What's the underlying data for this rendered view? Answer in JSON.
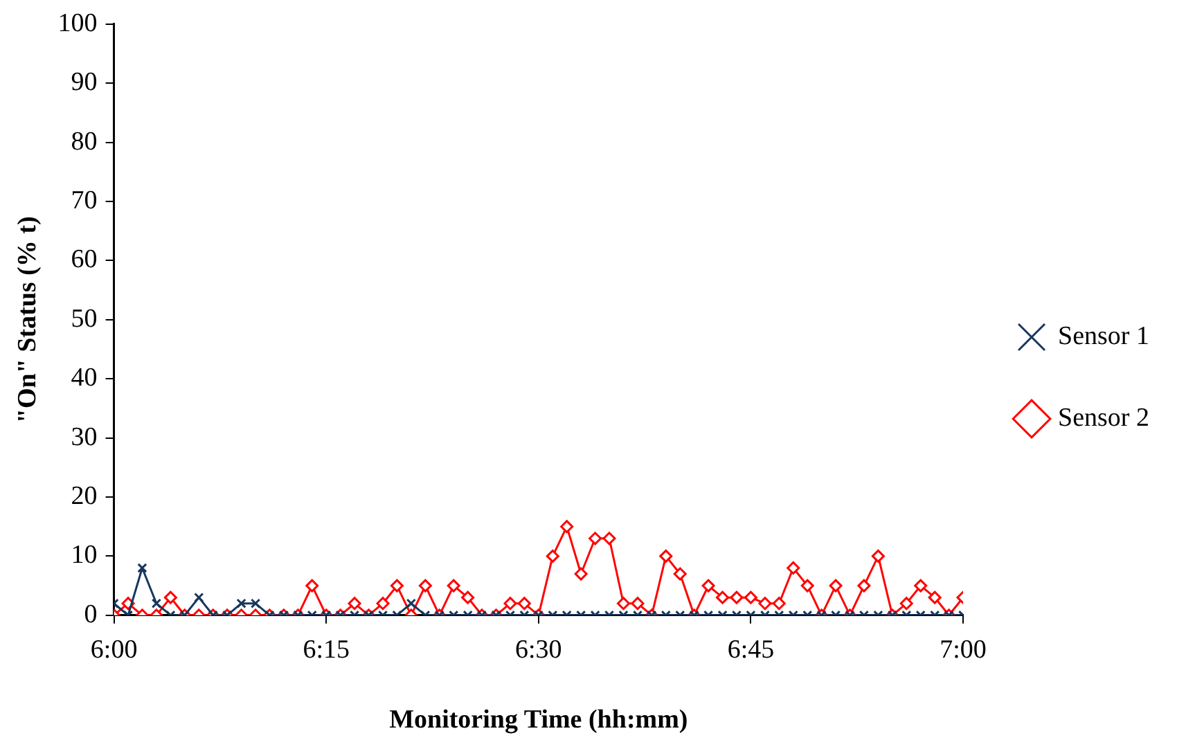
{
  "chart_data": {
    "type": "line",
    "xlabel": "Monitoring Time (hh:mm)",
    "ylabel": "\"On\" Status (% t)",
    "x": [
      6,
      6.0167,
      6.0333,
      6.05,
      6.0667,
      6.0833,
      6.1,
      6.1167,
      6.1333,
      6.15,
      6.1667,
      6.1833,
      6.2,
      6.2167,
      6.2333,
      6.25,
      6.2667,
      6.2833,
      6.3,
      6.3167,
      6.3333,
      6.35,
      6.3667,
      6.3833,
      6.4,
      6.4167,
      6.4333,
      6.45,
      6.4667,
      6.4833,
      6.5,
      6.5167,
      6.5333,
      6.55,
      6.5667,
      6.5833,
      6.6,
      6.6167,
      6.6333,
      6.65,
      6.6667,
      6.6833,
      6.7,
      6.7167,
      6.7333,
      6.75,
      6.7667,
      6.7833,
      6.8,
      6.8167,
      6.8333,
      6.85,
      6.8667,
      6.8833,
      6.9,
      6.9167,
      6.9333,
      6.95,
      6.9667,
      6.9833,
      7
    ],
    "xlim": [
      6,
      7
    ],
    "xticks": [
      {
        "value": 6,
        "label": "6:00"
      },
      {
        "value": 6.25,
        "label": "6:15"
      },
      {
        "value": 6.5,
        "label": "6:30"
      },
      {
        "value": 6.75,
        "label": "6:45"
      },
      {
        "value": 7,
        "label": "7:00"
      }
    ],
    "ylim": [
      0,
      100
    ],
    "yticks": [
      0,
      10,
      20,
      30,
      40,
      50,
      60,
      70,
      80,
      90,
      100
    ],
    "grid": false,
    "legend": "right",
    "line_style": "solid",
    "series": [
      {
        "name": "Sensor 1",
        "color": "#17375e",
        "marker": "cross",
        "values": [
          2,
          0,
          8,
          2,
          0,
          0,
          3,
          0,
          0,
          2,
          2,
          0,
          0,
          0,
          0,
          0,
          0,
          0,
          0,
          0,
          0,
          2,
          0,
          0,
          0,
          0,
          0,
          0,
          0,
          0,
          0,
          0,
          0,
          0,
          0,
          0,
          0,
          0,
          0,
          0,
          0,
          0,
          0,
          0,
          0,
          0,
          0,
          0,
          0,
          0,
          0,
          0,
          0,
          0,
          0,
          0,
          0,
          0,
          0,
          0,
          0
        ]
      },
      {
        "name": "Sensor 2",
        "color": "#ff0000",
        "marker": "diamond",
        "values": [
          0,
          2,
          0,
          0,
          3,
          0,
          0,
          0,
          0,
          0,
          0,
          0,
          0,
          0,
          5,
          0,
          0,
          2,
          0,
          2,
          5,
          0,
          5,
          0,
          5,
          3,
          0,
          0,
          2,
          2,
          0,
          10,
          15,
          7,
          13,
          13,
          2,
          2,
          0,
          10,
          7,
          0,
          5,
          3,
          3,
          3,
          2,
          2,
          8,
          5,
          0,
          5,
          0,
          5,
          10,
          0,
          2,
          5,
          3,
          0,
          3
        ]
      }
    ]
  }
}
